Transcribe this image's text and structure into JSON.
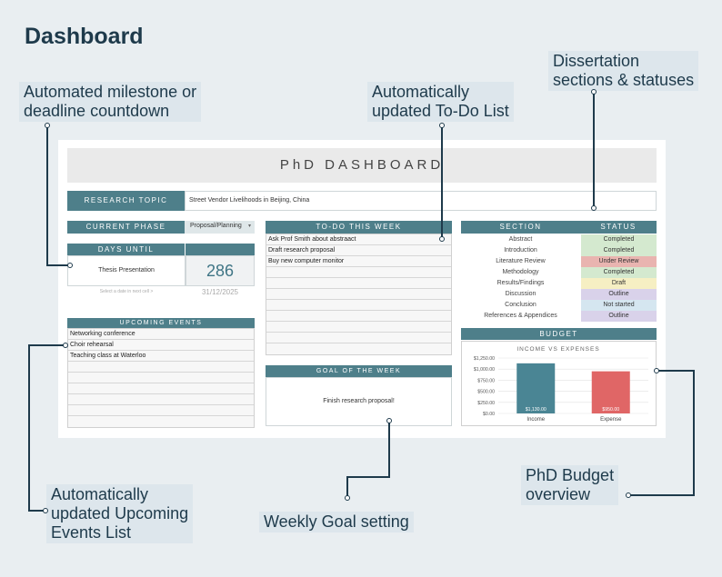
{
  "heading": "Dashboard",
  "callouts": {
    "countdown": [
      "Automated milestone or",
      "deadline countdown"
    ],
    "todo": [
      "Automatically",
      "updated To-Do List"
    ],
    "sections": [
      "Dissertation",
      "sections & statuses"
    ],
    "events": [
      "Automatically",
      "updated Upcoming",
      "Events List"
    ],
    "weekly": [
      "Weekly Goal setting"
    ],
    "budget": [
      "PhD Budget",
      "overview"
    ]
  },
  "sheet": {
    "banner": "PhD DASHBOARD",
    "research_topic_label": "RESEARCH TOPIC",
    "research_topic_value": "Street Vendor Livelihoods in Beijing, China",
    "current_phase_label": "CURRENT PHASE",
    "current_phase_value": "Proposal/Planning",
    "days_until_label": "DAYS UNTIL",
    "days_until_event": "Thesis Presentation",
    "days_until_count": "286",
    "days_until_hint": "Select a date in next cell >",
    "days_until_date": "31/12/2025",
    "upcoming_label": "UPCOMING EVENTS",
    "upcoming_events": [
      "Networking conference",
      "Choir rehearsal",
      "Teaching class at Waterloo",
      "",
      "",
      "",
      "",
      "",
      ""
    ],
    "todo_label": "TO-DO THIS WEEK",
    "todo_items": [
      "Ask Prof Smith about abstraact",
      "Draft research proposal",
      "Buy new computer monitor",
      "",
      "",
      "",
      "",
      "",
      "",
      "",
      ""
    ],
    "goal_label": "GOAL OF THE WEEK",
    "goal_value": "Finish research proposal!",
    "section_label": "SECTION",
    "status_label": "STATUS",
    "sections": [
      {
        "name": "Abstract",
        "status": "Completed",
        "color": "#d4e9cf"
      },
      {
        "name": "Introduction",
        "status": "Completed",
        "color": "#d4e9cf"
      },
      {
        "name": "Literature Review",
        "status": "Under Review",
        "color": "#e9b4b0"
      },
      {
        "name": "Methodology",
        "status": "Completed",
        "color": "#d4e9cf"
      },
      {
        "name": "Results/Findings",
        "status": "Draft",
        "color": "#f6efc3"
      },
      {
        "name": "Discussion",
        "status": "Outline",
        "color": "#d9d2ea"
      },
      {
        "name": "Conclusion",
        "status": "Not started",
        "color": "#d5e6f0"
      },
      {
        "name": "References & Appendices",
        "status": "Outline",
        "color": "#d9d2ea"
      }
    ],
    "budget_label": "BUDGET"
  },
  "chart_data": {
    "type": "bar",
    "title": "INCOME VS EXPENSES",
    "categories": [
      "Income",
      "Expense"
    ],
    "values": [
      1130,
      950
    ],
    "value_labels": [
      "$1,130.00",
      "$950.00"
    ],
    "colors": [
      "#4a8594",
      "#e06666"
    ],
    "ylim": [
      0,
      1250
    ],
    "yticks": [
      "$0.00",
      "$250.00",
      "$500.00",
      "$750.00",
      "$1,000.00",
      "$1,250.00"
    ],
    "grid": true
  },
  "colors": {
    "accent": "#4e7f8a",
    "background": "#e9eef1",
    "callout_bg": "#dde6ec",
    "ink": "#1e3a4b"
  }
}
